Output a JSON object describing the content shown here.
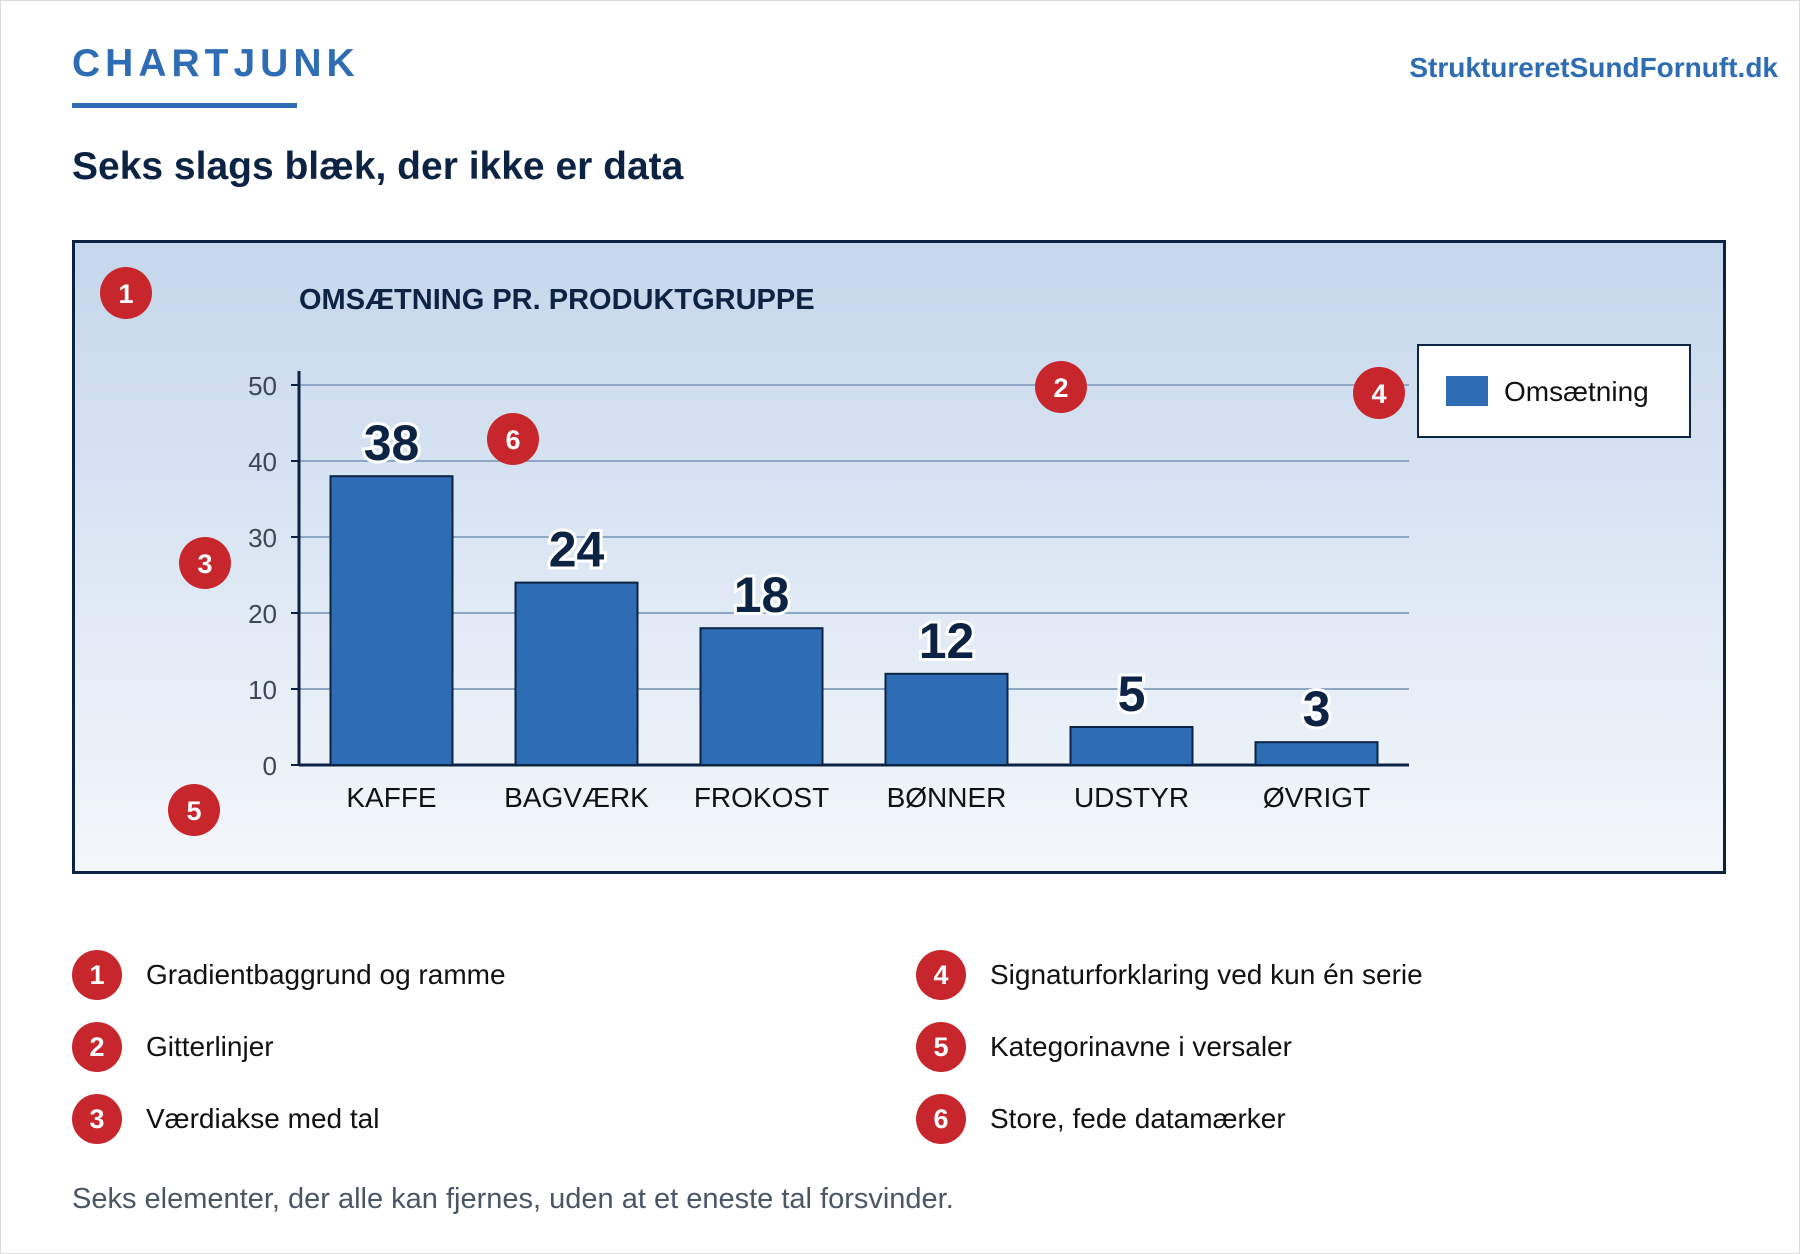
{
  "header": {
    "brand": "CHARTJUNK",
    "site": "StruktureretSundFornuft.dk",
    "headline": "Seks slags blæk, der ikke er data"
  },
  "chart_data": {
    "type": "bar",
    "title": "OMSÆTNING PR. PRODUKTGRUPPE",
    "categories": [
      "KAFFE",
      "BAGVÆRK",
      "FROKOST",
      "BØNNER",
      "UDSTYR",
      "ØVRIGT"
    ],
    "series": [
      {
        "name": "Omsætning",
        "values": [
          38,
          24,
          18,
          12,
          5,
          3
        ]
      }
    ],
    "ylim": [
      0,
      50
    ],
    "yticks": [
      0,
      10,
      20,
      30,
      40,
      50
    ],
    "grid": true,
    "legend_position": "top-right",
    "bar_color": "#2e6db4",
    "data_labels": true
  },
  "annotations": [
    {
      "num": "1",
      "text": "Gradientbaggrund og ramme"
    },
    {
      "num": "2",
      "text": "Gitterlinjer"
    },
    {
      "num": "3",
      "text": "Værdiakse med tal"
    },
    {
      "num": "4",
      "text": "Signaturforklaring ved kun én serie"
    },
    {
      "num": "5",
      "text": "Kategorinavne i versaler"
    },
    {
      "num": "6",
      "text": "Store, fede datamærker"
    }
  ],
  "footer": "Seks elementer, der alle kan fjernes, uden at et eneste tal forsvinder.",
  "colors": {
    "accent": "#2e6db4",
    "navy": "#0d2344",
    "badge": "#c8262d"
  }
}
